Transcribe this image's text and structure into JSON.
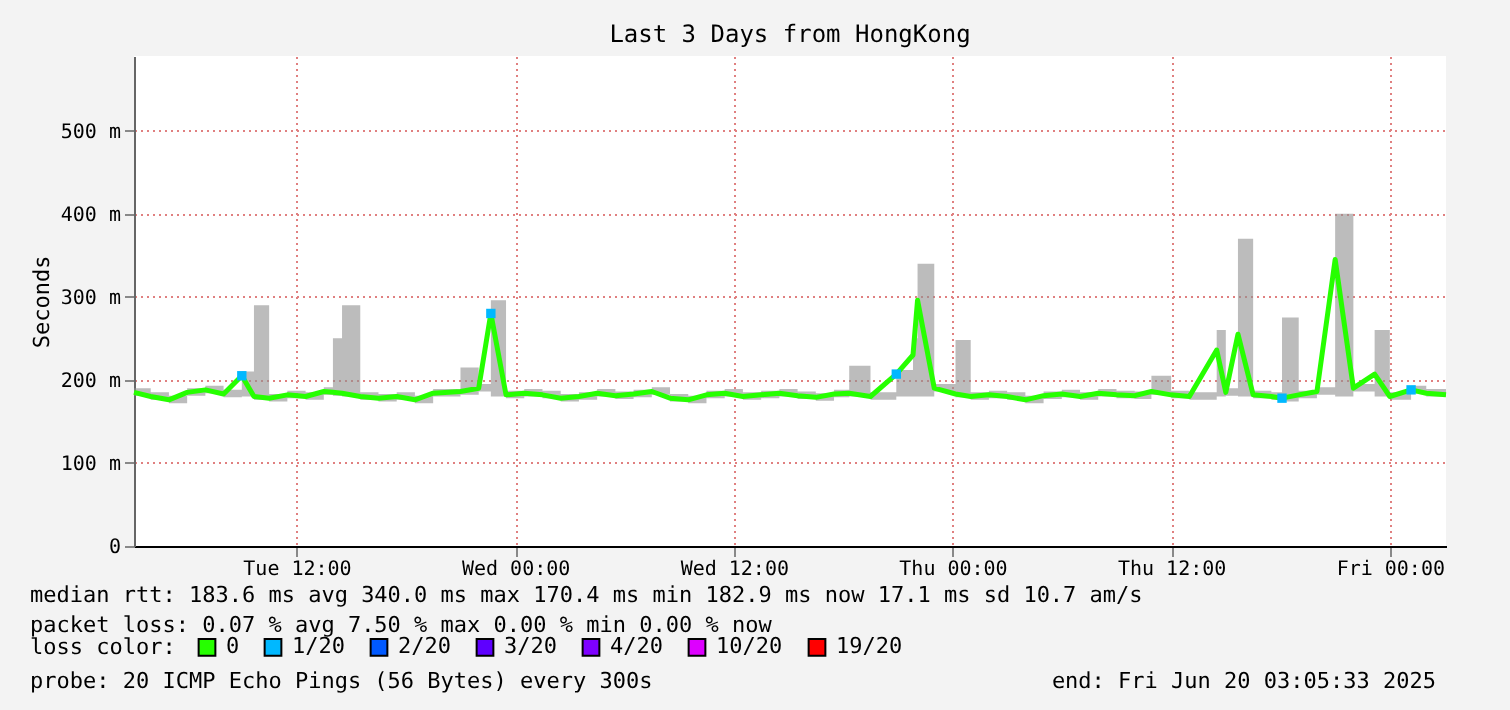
{
  "chart_data": {
    "type": "line",
    "title": "Last 3 Days from HongKong",
    "ylabel": "Seconds",
    "x": [
      "2025-06-17T03:05",
      "2025-06-17T04:00",
      "2025-06-17T05:00",
      "2025-06-17T06:00",
      "2025-06-17T07:00",
      "2025-06-17T08:00",
      "2025-06-17T09:00",
      "2025-06-17T09:40",
      "2025-06-17T10:30",
      "2025-06-17T11:30",
      "2025-06-17T12:30",
      "2025-06-17T13:30",
      "2025-06-17T14:00",
      "2025-06-17T14:30",
      "2025-06-17T15:30",
      "2025-06-17T16:30",
      "2025-06-17T17:30",
      "2025-06-17T18:30",
      "2025-06-17T19:30",
      "2025-06-17T21:00",
      "2025-06-17T22:00",
      "2025-06-17T22:40",
      "2025-06-17T23:30",
      "2025-06-18T00:30",
      "2025-06-18T01:30",
      "2025-06-18T02:30",
      "2025-06-18T03:30",
      "2025-06-18T04:30",
      "2025-06-18T05:30",
      "2025-06-18T06:30",
      "2025-06-18T07:30",
      "2025-06-18T08:30",
      "2025-06-18T09:30",
      "2025-06-18T10:30",
      "2025-06-18T11:30",
      "2025-06-18T12:30",
      "2025-06-18T13:30",
      "2025-06-18T14:30",
      "2025-06-18T15:30",
      "2025-06-18T16:30",
      "2025-06-18T17:30",
      "2025-06-18T18:20",
      "2025-06-18T19:30",
      "2025-06-18T20:55",
      "2025-06-18T21:50",
      "2025-06-18T22:05",
      "2025-06-18T23:00",
      "2025-06-19T00:10",
      "2025-06-19T01:00",
      "2025-06-19T02:00",
      "2025-06-19T03:00",
      "2025-06-19T04:00",
      "2025-06-19T05:00",
      "2025-06-19T06:00",
      "2025-06-19T07:00",
      "2025-06-19T08:00",
      "2025-06-19T09:00",
      "2025-06-19T10:00",
      "2025-06-19T10:55",
      "2025-06-19T12:00",
      "2025-06-19T13:00",
      "2025-06-19T14:30",
      "2025-06-19T15:00",
      "2025-06-19T15:40",
      "2025-06-19T16:30",
      "2025-06-19T17:30",
      "2025-06-19T18:05",
      "2025-06-19T19:00",
      "2025-06-19T20:00",
      "2025-06-19T21:00",
      "2025-06-19T22:00",
      "2025-06-19T23:10",
      "2025-06-20T00:00",
      "2025-06-20T01:10",
      "2025-06-20T02:00",
      "2025-06-20T03:05"
    ],
    "series": [
      {
        "name": "0",
        "color": "#26ff00",
        "values": [
          185,
          180,
          176,
          185,
          188,
          183,
          205,
          180,
          178,
          182,
          180,
          186,
          185,
          184,
          180,
          178,
          180,
          176,
          184,
          186,
          190,
          280,
          182,
          184,
          182,
          178,
          180,
          184,
          181,
          183,
          186,
          178,
          176,
          182,
          184,
          180,
          182,
          184,
          181,
          179,
          183,
          184,
          180,
          207,
          230,
          296,
          190,
          183,
          180,
          182,
          180,
          176,
          181,
          183,
          180,
          184,
          182,
          181,
          186,
          182,
          180,
          236,
          185,
          255,
          182,
          180,
          178,
          182,
          186,
          345,
          190,
          207,
          180,
          188,
          184,
          182
        ],
        "lower": [
          181,
          176,
          172,
          181,
          184,
          179,
          180,
          176,
          174,
          178,
          176,
          182,
          181,
          180,
          176,
          174,
          176,
          172,
          180,
          182,
          186,
          180,
          178,
          180,
          178,
          174,
          176,
          180,
          177,
          179,
          182,
          174,
          172,
          178,
          180,
          176,
          178,
          180,
          177,
          175,
          179,
          180,
          176,
          180,
          180,
          180,
          186,
          179,
          176,
          178,
          176,
          172,
          177,
          179,
          176,
          180,
          178,
          177,
          182,
          178,
          176,
          180,
          181,
          180,
          178,
          176,
          174,
          178,
          182,
          180,
          186,
          180,
          176,
          184,
          180,
          178
        ],
        "upper": [
          190,
          185,
          181,
          190,
          193,
          188,
          210,
          290,
          183,
          187,
          185,
          191,
          250,
          290,
          185,
          183,
          185,
          181,
          189,
          215,
          195,
          296,
          187,
          189,
          187,
          183,
          185,
          189,
          186,
          188,
          191,
          183,
          181,
          187,
          189,
          185,
          187,
          189,
          186,
          184,
          188,
          217,
          185,
          212,
          250,
          340,
          195,
          248,
          185,
          187,
          185,
          181,
          186,
          188,
          185,
          189,
          187,
          186,
          205,
          187,
          185,
          260,
          190,
          370,
          187,
          185,
          275,
          187,
          191,
          400,
          195,
          260,
          185,
          193,
          189,
          187
        ]
      },
      {
        "name": "1/20",
        "color": "#00b8ff",
        "type": "scatter",
        "marker": "square",
        "values": [
          null,
          null,
          null,
          null,
          null,
          null,
          205,
          null,
          null,
          null,
          null,
          null,
          null,
          null,
          null,
          null,
          null,
          null,
          null,
          null,
          null,
          280,
          null,
          null,
          null,
          null,
          null,
          null,
          null,
          null,
          null,
          null,
          null,
          null,
          null,
          null,
          null,
          null,
          null,
          null,
          null,
          null,
          null,
          207,
          null,
          null,
          null,
          null,
          null,
          null,
          null,
          null,
          null,
          null,
          null,
          null,
          null,
          null,
          null,
          null,
          null,
          null,
          null,
          null,
          null,
          null,
          178,
          null,
          null,
          null,
          null,
          null,
          null,
          188,
          null,
          null
        ]
      },
      {
        "name": "2/20",
        "color": "#0059ff",
        "type": "scatter",
        "values": [
          null,
          null,
          null,
          null,
          null,
          null,
          null,
          null,
          null,
          null,
          null,
          null,
          null,
          null,
          null,
          null,
          null,
          null,
          null,
          null,
          null,
          null,
          null,
          null,
          null,
          null,
          null,
          null,
          null,
          null,
          null,
          null,
          null,
          null,
          null,
          null,
          null,
          null,
          null,
          null,
          null,
          null,
          null,
          null,
          null,
          null,
          null,
          null,
          null,
          null,
          null,
          null,
          null,
          null,
          null,
          null,
          null,
          null,
          null,
          null,
          null,
          null,
          null,
          null,
          null,
          null,
          null,
          null,
          null,
          null,
          null,
          null,
          null,
          null,
          null,
          null
        ]
      },
      {
        "name": "3/20",
        "color": "#5e00ff",
        "type": "scatter",
        "values": [
          null,
          null,
          null,
          null,
          null,
          null,
          null,
          null,
          null,
          null,
          null,
          null,
          null,
          null,
          null,
          null,
          null,
          null,
          null,
          null,
          null,
          null,
          null,
          null,
          null,
          null,
          null,
          null,
          null,
          null,
          null,
          null,
          null,
          null,
          null,
          null,
          null,
          null,
          null,
          null,
          null,
          null,
          null,
          null,
          null,
          null,
          null,
          null,
          null,
          null,
          null,
          null,
          null,
          null,
          null,
          null,
          null,
          null,
          null,
          null,
          null,
          null,
          null,
          null,
          null,
          null,
          null,
          null,
          null,
          null,
          null,
          null,
          null,
          null,
          null,
          null
        ]
      },
      {
        "name": "4/20",
        "color": "#7e00ff",
        "type": "scatter",
        "values": [
          null,
          null,
          null,
          null,
          null,
          null,
          null,
          null,
          null,
          null,
          null,
          null,
          null,
          null,
          null,
          null,
          null,
          null,
          null,
          null,
          null,
          null,
          null,
          null,
          null,
          null,
          null,
          null,
          null,
          null,
          null,
          null,
          null,
          null,
          null,
          null,
          null,
          null,
          null,
          null,
          null,
          null,
          null,
          null,
          null,
          null,
          null,
          null,
          null,
          null,
          null,
          null,
          null,
          null,
          null,
          null,
          null,
          null,
          null,
          null,
          null,
          null,
          null,
          null,
          null,
          null,
          null,
          null,
          null,
          null,
          null,
          null,
          null,
          null,
          null,
          null
        ]
      },
      {
        "name": "10/20",
        "color": "#dd00ff",
        "type": "scatter",
        "values": [
          null,
          null,
          null,
          null,
          null,
          null,
          null,
          null,
          null,
          null,
          null,
          null,
          null,
          null,
          null,
          null,
          null,
          null,
          null,
          null,
          null,
          null,
          null,
          null,
          null,
          null,
          null,
          null,
          null,
          null,
          null,
          null,
          null,
          null,
          null,
          null,
          null,
          null,
          null,
          null,
          null,
          null,
          null,
          null,
          null,
          null,
          null,
          null,
          null,
          null,
          null,
          null,
          null,
          null,
          null,
          null,
          null,
          null,
          null,
          null,
          null,
          null,
          null,
          null,
          null,
          null,
          null,
          null,
          null,
          null,
          null,
          null,
          null,
          null,
          null,
          null
        ]
      },
      {
        "name": "19/20",
        "color": "#ff0000",
        "type": "scatter",
        "values": [
          null,
          null,
          null,
          null,
          null,
          null,
          null,
          null,
          null,
          null,
          null,
          null,
          null,
          null,
          null,
          null,
          null,
          null,
          null,
          null,
          null,
          null,
          null,
          null,
          null,
          null,
          null,
          null,
          null,
          null,
          null,
          null,
          null,
          null,
          null,
          null,
          null,
          null,
          null,
          null,
          null,
          null,
          null,
          null,
          null,
          null,
          null,
          null,
          null,
          null,
          null,
          null,
          null,
          null,
          null,
          null,
          null,
          null,
          null,
          null,
          null,
          null,
          null,
          null,
          null,
          null,
          null,
          null,
          null,
          null,
          null,
          null,
          null,
          null,
          null,
          null
        ]
      }
    ],
    "legend_title": "loss color:",
    "legend": "bottom left",
    "xlim": [
      "2025-06-17T03:05",
      "2025-06-20T03:05"
    ],
    "xticks": [
      {
        "value": "2025-06-17T12:00",
        "label": "Tue 12:00"
      },
      {
        "value": "2025-06-18T00:00",
        "label": "Wed 00:00"
      },
      {
        "value": "2025-06-18T12:00",
        "label": "Wed 12:00"
      },
      {
        "value": "2025-06-19T00:00",
        "label": "Thu 00:00"
      },
      {
        "value": "2025-06-19T12:00",
        "label": "Thu 12:00"
      },
      {
        "value": "2025-06-20T00:00",
        "label": "Fri 00:00"
      }
    ],
    "ylim": [
      0,
      590
    ],
    "yticks": [
      0,
      {
        "value": 100,
        "label": "100 m"
      },
      {
        "value": 200,
        "label": "200 m"
      },
      {
        "value": 300,
        "label": "300 m"
      },
      {
        "value": 400,
        "label": "400 m"
      },
      {
        "value": 500,
        "label": "500 m"
      }
    ],
    "grid": true,
    "line_style": "solid",
    "annotations": [
      "median rtt:  183.6 ms avg  340.0 ms max  170.4 ms min  182.9 ms now  17.1 ms sd  10.7   am/s",
      "packet loss: 0.07 % avg  7.50 % max  0.00 % min  0.00 % now",
      "probe:       20 ICMP Echo Pings (56 Bytes) every 300s",
      "end: Fri Jun 20 03:05:33 2025"
    ]
  }
}
